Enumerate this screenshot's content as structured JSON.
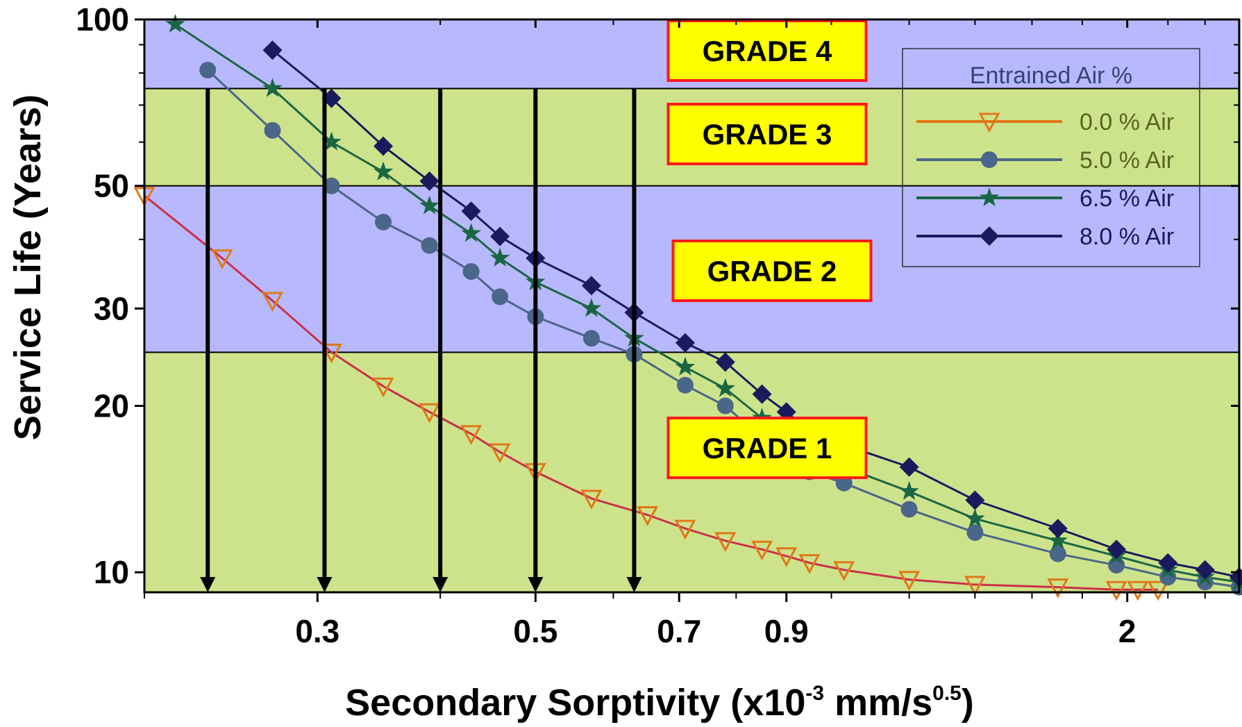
{
  "chart_data": {
    "type": "line",
    "xlabel": "Secondary Sorptivity (x10",
    "xlabel_sup1": "-3",
    "xlabel_mid": " mm/s",
    "xlabel_sup2": "0.5",
    "xlabel_end": ")",
    "ylabel": "Service Life (Years)",
    "x_scale": "log",
    "y_scale": "log",
    "xlim": [
      0.2,
      2.6
    ],
    "ylim": [
      9.2,
      100
    ],
    "x_ticks": [
      0.3,
      0.5,
      0.7,
      0.9,
      2
    ],
    "x_tick_labels": [
      "0.3",
      "0.5",
      "0.7",
      "0.9",
      "2"
    ],
    "y_ticks": [
      10,
      20,
      30,
      50,
      100
    ],
    "y_tick_labels": [
      "10",
      "20",
      "30",
      "50",
      "100"
    ],
    "legend": {
      "title": "Entrained Air %",
      "placement": "top-right"
    },
    "grades": [
      {
        "label": "GRADE 1",
        "from": 9.2,
        "to": 25,
        "color": "#cde38b"
      },
      {
        "label": "GRADE 2",
        "from": 25,
        "to": 50,
        "color": "#b8b8ff"
      },
      {
        "label": "GRADE 3",
        "from": 50,
        "to": 75,
        "color": "#cde38b"
      },
      {
        "label": "GRADE 4",
        "from": 75,
        "to": 100,
        "color": "#b8b8ff"
      }
    ],
    "arrows": [
      0.232,
      0.305,
      0.4,
      0.5,
      0.63
    ],
    "series": [
      {
        "name": "0.0 % Air",
        "marker": "triangle-down",
        "color": "#e07818",
        "line_color": "#c93048",
        "x": [
          0.2,
          0.24,
          0.27,
          0.31,
          0.35,
          0.39,
          0.43,
          0.46,
          0.5,
          0.57,
          0.65,
          0.71,
          0.78,
          0.85,
          0.9,
          0.95,
          1.03,
          1.2,
          1.4,
          1.7,
          1.95,
          2.05,
          2.15
        ],
        "y": [
          48,
          37,
          31,
          25,
          21.7,
          19.5,
          17.8,
          16.5,
          15.2,
          13.6,
          12.7,
          12,
          11.4,
          11,
          10.7,
          10.4,
          10.1,
          9.7,
          9.5,
          9.4,
          9.3,
          9.3,
          9.3
        ]
      },
      {
        "name": "5.0 % Air",
        "marker": "circle",
        "color": "#4a6688",
        "x": [
          0.232,
          0.27,
          0.31,
          0.35,
          0.39,
          0.43,
          0.46,
          0.5,
          0.57,
          0.63,
          0.71,
          0.78,
          0.85,
          0.9,
          0.95,
          1.03,
          1.2,
          1.4,
          1.7,
          1.95,
          2.2,
          2.4,
          2.6
        ],
        "y": [
          81,
          63,
          50,
          43,
          39,
          35,
          31.5,
          29,
          26.5,
          24.8,
          21.8,
          20,
          17.5,
          16.3,
          15.2,
          14.5,
          13,
          11.8,
          10.8,
          10.3,
          9.8,
          9.6,
          9.4
        ]
      },
      {
        "name": "6.5 % Air",
        "marker": "star",
        "color": "#1a6644",
        "x": [
          0.215,
          0.27,
          0.31,
          0.35,
          0.39,
          0.43,
          0.46,
          0.5,
          0.57,
          0.63,
          0.71,
          0.78,
          0.85,
          0.9,
          0.95,
          1.03,
          1.2,
          1.4,
          1.7,
          1.95,
          2.2,
          2.4,
          2.6
        ],
        "y": [
          98,
          75,
          60,
          53,
          46,
          41,
          37,
          33.5,
          30,
          26.5,
          23.5,
          21.5,
          19,
          17.5,
          16.5,
          15.5,
          14,
          12.5,
          11.4,
          10.7,
          10.1,
          9.8,
          9.6
        ]
      },
      {
        "name": "8.0 % Air",
        "marker": "diamond",
        "color": "#1a1a5e",
        "x": [
          0.27,
          0.31,
          0.35,
          0.39,
          0.43,
          0.46,
          0.5,
          0.57,
          0.63,
          0.71,
          0.78,
          0.85,
          0.9,
          0.95,
          1.03,
          1.2,
          1.4,
          1.7,
          1.95,
          2.2,
          2.4,
          2.6
        ],
        "y": [
          88,
          72,
          59,
          51,
          45,
          40.5,
          37,
          33,
          29.5,
          26,
          24,
          21,
          19.5,
          18,
          17,
          15.5,
          13.5,
          12,
          11,
          10.4,
          10.1,
          9.8
        ]
      }
    ]
  }
}
